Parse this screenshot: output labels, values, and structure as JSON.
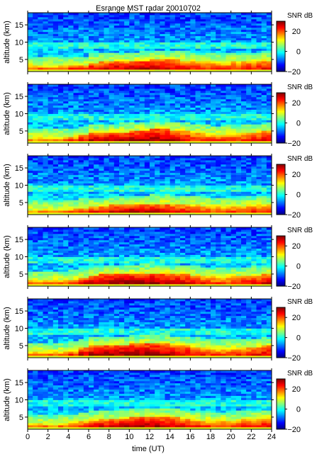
{
  "chart_data": {
    "type": "heatmap",
    "title": "Esrange MST radar 20010702",
    "xlabel": "time (UT)",
    "ylabel": "altitude (km)",
    "xlim": [
      0,
      24
    ],
    "ylim": [
      1.5,
      18.5
    ],
    "x_ticks": [
      0,
      2,
      4,
      6,
      8,
      10,
      12,
      14,
      16,
      18,
      20,
      22,
      24
    ],
    "x_tick_labels": [
      "0",
      "2",
      "4",
      "6",
      "8",
      "10",
      "12",
      "14",
      "16",
      "18",
      "20",
      "22",
      "24"
    ],
    "y_ticks": [
      5,
      10,
      15
    ],
    "y_tick_labels": [
      "5",
      "10",
      "15"
    ],
    "colorbar": {
      "label": "SNR dB",
      "range": [
        -20,
        30
      ],
      "ticks": [
        -20,
        0,
        20
      ],
      "tick_labels": [
        "−20",
        "0",
        "20"
      ],
      "colormap": "jet"
    },
    "grid": false,
    "panels": [
      {
        "name": "",
        "layer_top_km": [
          3.4,
          3.3,
          3.3,
          3.3,
          3.4,
          3.5,
          4.2,
          4.3,
          4.5,
          4.4,
          4.6,
          4.8,
          4.9,
          5.0,
          5.1,
          4.8,
          4.5,
          4.4,
          4.3,
          4.2,
          4.4,
          4.5,
          4.6,
          4.8
        ],
        "peak_snr_db": [
          18,
          19,
          19,
          19,
          21,
          23,
          24,
          25,
          26,
          25,
          26,
          27,
          27,
          26,
          25,
          23,
          22,
          21,
          22,
          21,
          22,
          23,
          23,
          24
        ]
      },
      {
        "name": "",
        "layer_top_km": [
          3.3,
          3.3,
          3.2,
          3.3,
          3.4,
          3.8,
          4.5,
          4.6,
          4.7,
          4.8,
          5.0,
          5.3,
          5.5,
          5.5,
          5.3,
          5.0,
          4.7,
          4.3,
          4.1,
          4.2,
          4.3,
          4.4,
          4.6,
          4.9
        ],
        "peak_snr_db": [
          17,
          18,
          18,
          19,
          21,
          24,
          26,
          26,
          27,
          27,
          27,
          28,
          28,
          27,
          26,
          24,
          22,
          21,
          21,
          21,
          22,
          22,
          23,
          25
        ]
      },
      {
        "name": "",
        "layer_top_km": [
          3.3,
          3.2,
          3.2,
          3.3,
          3.4,
          3.6,
          3.9,
          4.1,
          4.3,
          4.5,
          4.6,
          4.7,
          4.8,
          4.8,
          4.6,
          4.4,
          4.3,
          4.2,
          4.0,
          4.0,
          4.1,
          4.2,
          4.3,
          4.4
        ],
        "peak_snr_db": [
          16,
          17,
          17,
          18,
          20,
          22,
          23,
          24,
          25,
          25,
          26,
          26,
          26,
          25,
          24,
          23,
          22,
          21,
          20,
          20,
          21,
          21,
          22,
          22
        ]
      },
      {
        "name": "",
        "layer_top_km": [
          3.4,
          3.4,
          3.3,
          3.4,
          3.6,
          4.2,
          4.8,
          5.0,
          5.1,
          5.2,
          5.3,
          5.4,
          5.4,
          5.3,
          5.2,
          5.0,
          4.8,
          4.5,
          4.3,
          4.3,
          4.4,
          4.6,
          4.8,
          5.0
        ],
        "peak_snr_db": [
          18,
          19,
          19,
          20,
          22,
          25,
          27,
          27,
          28,
          28,
          28,
          28,
          28,
          27,
          26,
          25,
          24,
          22,
          21,
          21,
          22,
          23,
          24,
          25
        ]
      },
      {
        "name": "",
        "layer_top_km": [
          3.4,
          3.3,
          3.3,
          3.4,
          3.6,
          4.3,
          4.9,
          5.1,
          5.2,
          5.3,
          5.5,
          5.6,
          5.6,
          5.5,
          5.3,
          5.1,
          4.8,
          4.4,
          4.2,
          4.2,
          4.3,
          4.5,
          4.7,
          4.9
        ],
        "peak_snr_db": [
          18,
          19,
          19,
          20,
          22,
          26,
          27,
          28,
          28,
          28,
          28,
          28,
          28,
          27,
          26,
          25,
          24,
          22,
          21,
          21,
          22,
          23,
          24,
          25
        ]
      },
      {
        "name": "",
        "layer_top_km": [
          3.3,
          3.3,
          3.2,
          3.3,
          3.4,
          3.7,
          4.2,
          4.4,
          4.6,
          4.8,
          5.0,
          5.2,
          5.3,
          5.2,
          5.0,
          4.7,
          4.4,
          4.2,
          4.1,
          4.1,
          4.2,
          4.3,
          4.5,
          4.7
        ],
        "peak_snr_db": [
          17,
          18,
          18,
          19,
          21,
          23,
          25,
          25,
          26,
          26,
          27,
          27,
          27,
          26,
          25,
          24,
          22,
          21,
          21,
          21,
          21,
          22,
          23,
          24
        ]
      }
    ]
  }
}
